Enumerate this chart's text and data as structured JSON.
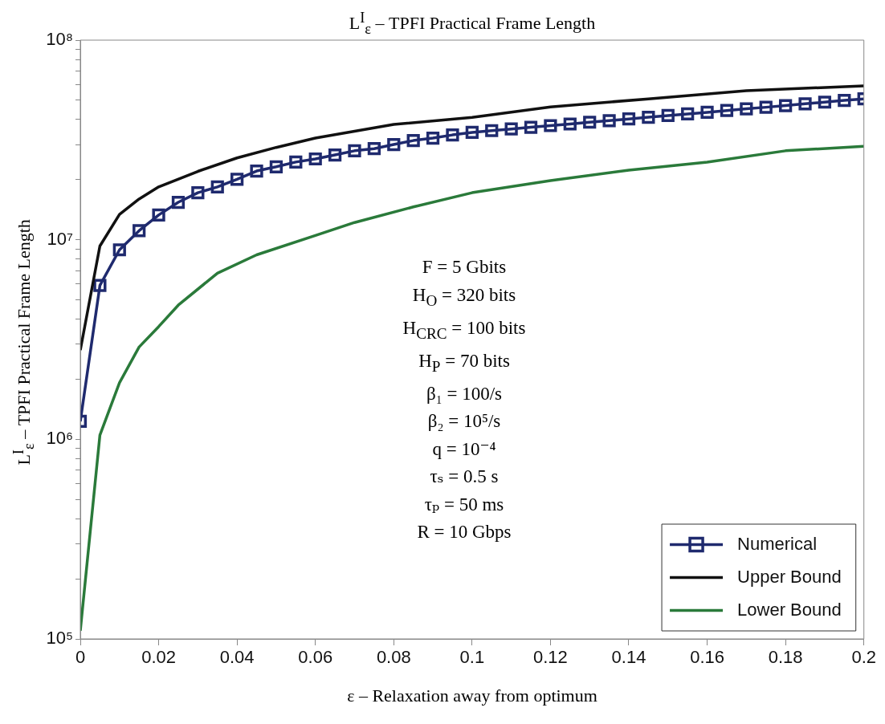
{
  "chart_data": {
    "type": "line",
    "title": "L$^{I}$$_{ε}$ – TPFI Practical Frame Length",
    "xlabel": "ε – Relaxation away from optimum",
    "ylabel": "L$^{I}$$_{ε}$ – TPFI Practical Frame Length",
    "xlim": [
      0,
      0.2
    ],
    "xticks": [
      0,
      0.02,
      0.04,
      0.06,
      0.08,
      0.1,
      0.12,
      0.14,
      0.16,
      0.18,
      0.2
    ],
    "ylim": [
      100000,
      100000000
    ],
    "log": "y",
    "yticks": [
      {
        "value": 100000,
        "label": "10⁵"
      },
      {
        "value": 200000,
        "label": null
      },
      {
        "value": 300000,
        "label": null
      },
      {
        "value": 400000,
        "label": null
      },
      {
        "value": 500000,
        "label": null
      },
      {
        "value": 600000,
        "label": null
      },
      {
        "value": 700000,
        "label": null
      },
      {
        "value": 800000,
        "label": null
      },
      {
        "value": 900000,
        "label": null
      },
      {
        "value": 1000000,
        "label": "10⁶"
      },
      {
        "value": 2000000,
        "label": null
      },
      {
        "value": 3000000,
        "label": null
      },
      {
        "value": 4000000,
        "label": null
      },
      {
        "value": 5000000,
        "label": null
      },
      {
        "value": 6000000,
        "label": null
      },
      {
        "value": 7000000,
        "label": null
      },
      {
        "value": 8000000,
        "label": null
      },
      {
        "value": 9000000,
        "label": null
      },
      {
        "value": 10000000,
        "label": "10⁷"
      },
      {
        "value": 20000000,
        "label": null
      },
      {
        "value": 30000000,
        "label": null
      },
      {
        "value": 40000000,
        "label": null
      },
      {
        "value": 50000000,
        "label": null
      },
      {
        "value": 60000000,
        "label": null
      },
      {
        "value": 70000000,
        "label": null
      },
      {
        "value": 80000000,
        "label": null
      },
      {
        "value": 90000000,
        "label": null
      },
      {
        "value": 100000000,
        "label": "10⁸"
      }
    ],
    "grid": false,
    "legend": "bottom right",
    "annotations": [
      "F = 5 Gbits",
      "H$_{O}$ = 320 bits",
      "H$_{CRC}$ = 100 bits",
      "H$_{P}$ = 70 bits",
      "β₁ = 100/s",
      "β₂ = 10⁵/s",
      "q = 10⁻⁴",
      "τₛ = 0.5 s",
      "τₚ = 50 ms",
      "R = 10 Gbps"
    ],
    "series": [
      {
        "name": "Numerical",
        "color": "#1f2a6e",
        "marker": "square",
        "x": [
          0,
          0.005,
          0.01,
          0.015,
          0.02,
          0.025,
          0.03,
          0.035,
          0.04,
          0.045,
          0.05,
          0.055,
          0.06,
          0.065,
          0.07,
          0.075,
          0.08,
          0.085,
          0.09,
          0.095,
          0.1,
          0.105,
          0.11,
          0.115,
          0.12,
          0.125,
          0.13,
          0.135,
          0.14,
          0.145,
          0.15,
          0.155,
          0.16,
          0.165,
          0.17,
          0.175,
          0.18,
          0.185,
          0.19,
          0.195,
          0.2
        ],
        "values": [
          1230000,
          5900000,
          8900000,
          11100000,
          13300000,
          15400000,
          17200000,
          18400000,
          20100000,
          22100000,
          23200000,
          24500000,
          25400000,
          26600000,
          27900000,
          28600000,
          30000000,
          31400000,
          32300000,
          33500000,
          34500000,
          35200000,
          35900000,
          36600000,
          37300000,
          38000000,
          38800000,
          39500000,
          40300000,
          41100000,
          41900000,
          42700000,
          43500000,
          44400000,
          45300000,
          46100000,
          47000000,
          48000000,
          48900000,
          49900000,
          50800000
        ]
      },
      {
        "name": "Upper Bound",
        "color": "#111111",
        "marker": "none",
        "x": [
          0,
          0.005,
          0.01,
          0.015,
          0.02,
          0.03,
          0.04,
          0.05,
          0.06,
          0.08,
          0.1,
          0.12,
          0.145,
          0.17,
          0.2
        ],
        "values": [
          2800000,
          9300000,
          13400000,
          16000000,
          18400000,
          22000000,
          25700000,
          29000000,
          32300000,
          37800000,
          41000000,
          46300000,
          50800000,
          55800000,
          59000000
        ]
      },
      {
        "name": "Lower Bound",
        "color": "#2a7a3a",
        "marker": "none",
        "x": [
          0,
          0.005,
          0.01,
          0.015,
          0.02,
          0.025,
          0.035,
          0.045,
          0.06,
          0.07,
          0.085,
          0.1,
          0.12,
          0.14,
          0.16,
          0.18,
          0.2
        ],
        "values": [
          110000,
          1050000,
          1920000,
          2900000,
          3670000,
          4700000,
          6800000,
          8400000,
          10500000,
          12200000,
          14600000,
          17200000,
          19800000,
          22300000,
          24500000,
          27900000,
          29400000
        ]
      }
    ]
  }
}
